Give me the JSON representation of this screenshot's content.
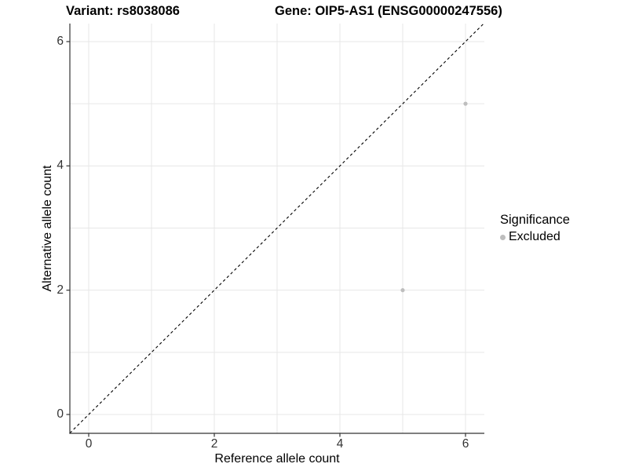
{
  "figure": {
    "background": "#ffffff"
  },
  "chart_data": {
    "type": "scatter",
    "title_left": "Variant: rs8038086",
    "title_right": "Gene: OIP5-AS1 (ENSG00000247556)",
    "xlabel": "Reference allele count",
    "ylabel": "Alternative allele count",
    "xlim": [
      -0.3,
      6.3
    ],
    "ylim": [
      -0.3,
      6.3
    ],
    "x_ticks": [
      0,
      2,
      4,
      6
    ],
    "y_ticks": [
      0,
      2,
      4,
      6
    ],
    "x_gridlines": [
      0,
      1,
      2,
      3,
      4,
      5,
      6
    ],
    "y_gridlines": [
      0,
      1,
      2,
      3,
      4,
      5,
      6
    ],
    "grid": "on",
    "series": [
      {
        "name": "Excluded",
        "color": "#bebebe",
        "points": [
          {
            "x": 6,
            "y": 5
          },
          {
            "x": 5,
            "y": 2
          }
        ]
      }
    ],
    "reference_line": {
      "equation": "y = x",
      "style": "dashed",
      "color": "#000000",
      "from": {
        "x": -0.3,
        "y": -0.3
      },
      "to": {
        "x": 6.3,
        "y": 6.3
      }
    },
    "legend": {
      "title": "Significance",
      "position": "right",
      "entries": [
        {
          "label": "Excluded",
          "color": "#bebebe",
          "marker": "circle"
        }
      ]
    }
  },
  "colors": {
    "grid": "#e7e7e7",
    "axis_line": "#333333",
    "tick_mark": "#333333",
    "tick_text": "#333333",
    "title_text": "#000000",
    "point": "#bebebe"
  }
}
